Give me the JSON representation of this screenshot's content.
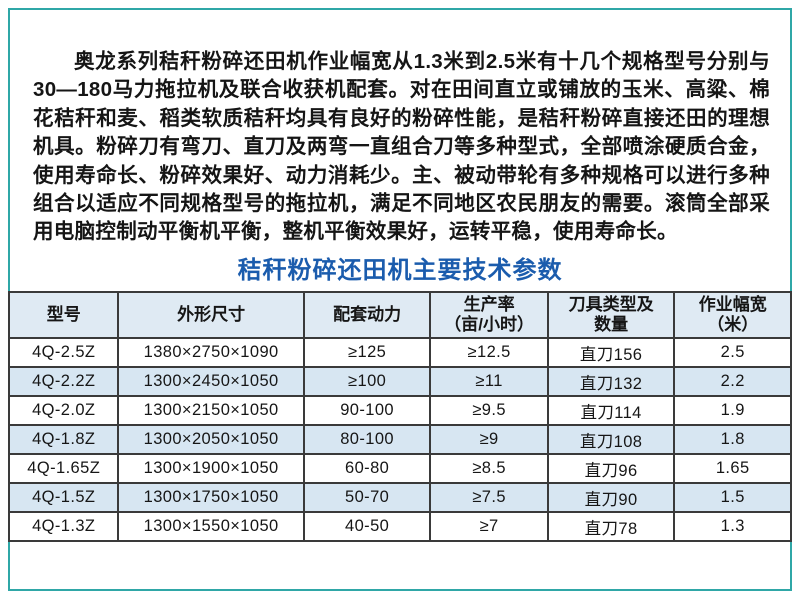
{
  "intro": {
    "text": "奥龙系列秸秆粉碎还田机作业幅宽从1.3米到2.5米有十几个规格型号分别与30—180马力拖拉机及联合收获机配套。对在田间直立或铺放的玉米、高粱、棉花秸秆和麦、稻类软质秸秆均具有良好的粉碎性能，是秸秆粉碎直接还田的理想机具。粉碎刀有弯刀、直刀及两弯一直组合刀等多种型式，全部喷涂硬质合金，使用寿命长、粉碎效果好、动力消耗少。主、被动带轮有多种规格可以进行多种组合以适应不同规格型号的拖拉机，满足不同地区农民朋友的需要。滚筒全部采用电脑控制动平衡机平衡，整机平衡效果好，运转平稳，使用寿命长。"
  },
  "table_title": "秸秆粉碎还田机主要技术参数",
  "spec_table": {
    "columns": [
      "型号",
      "外形尺寸",
      "配套动力",
      "生产率\n（亩/小时）",
      "刀具类型及\n数量",
      "作业幅宽\n（米）"
    ],
    "rows": [
      [
        "4Q-2.5Z",
        "1380×2750×1090",
        "≥125",
        "≥12.5",
        "直刀156",
        "2.5"
      ],
      [
        "4Q-2.2Z",
        "1300×2450×1050",
        "≥100",
        "≥11",
        "直刀132",
        "2.2"
      ],
      [
        "4Q-2.0Z",
        "1300×2150×1050",
        "90-100",
        "≥9.5",
        "直刀114",
        "1.9"
      ],
      [
        "4Q-1.8Z",
        "1300×2050×1050",
        "80-100",
        "≥9",
        "直刀108",
        "1.8"
      ],
      [
        "4Q-1.65Z",
        "1300×1900×1050",
        "60-80",
        "≥8.5",
        "直刀96",
        "1.65"
      ],
      [
        "4Q-1.5Z",
        "1300×1750×1050",
        "50-70",
        "≥7.5",
        "直刀90",
        "1.5"
      ],
      [
        "4Q-1.3Z",
        "1300×1550×1050",
        "40-50",
        "≥7",
        "直刀78",
        "1.3"
      ]
    ]
  },
  "colors": {
    "frame_teal": "#2fa7a7",
    "title_blue": "#1b5cad",
    "header_bg": "#dfeaf3",
    "row_alt_bg": "#d7e6f2",
    "table_border": "#3a3a3a",
    "body_text": "#151515"
  }
}
